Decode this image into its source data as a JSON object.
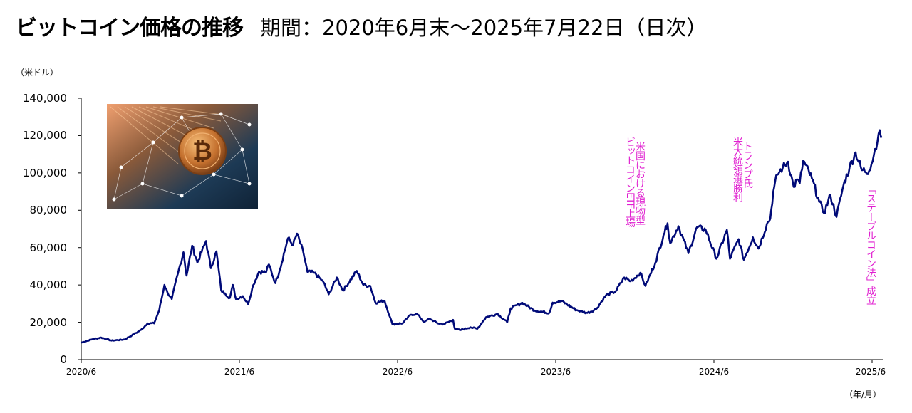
{
  "title": {
    "main": "ビットコイン価格の推移",
    "sub": "期間：2020年6月末～2025年7月22日（日次）"
  },
  "chart_data": {
    "type": "line",
    "yunit": "（米ドル）",
    "xunit": "（年/月）",
    "yticks": [
      "0",
      "20,000",
      "40,000",
      "60,000",
      "80,000",
      "100,000",
      "120,000",
      "140,000"
    ],
    "ylim": [
      0,
      140000
    ],
    "xticks": [
      "2020/6",
      "2021/6",
      "2022/6",
      "2023/6",
      "2024/6",
      "2025/6"
    ],
    "line_color": "#000a78",
    "annotation_color": "#e020d0",
    "series": [
      {
        "values": [
          [
            "2020-06-30",
            9100
          ],
          [
            "2020-07-27",
            11000
          ],
          [
            "2020-08-15",
            11800
          ],
          [
            "2020-09-08",
            10200
          ],
          [
            "2020-10-08",
            10800
          ],
          [
            "2020-10-25",
            13000
          ],
          [
            "2020-11-15",
            15900
          ],
          [
            "2020-11-30",
            19400
          ],
          [
            "2020-12-15",
            19400
          ],
          [
            "2020-12-27",
            26500
          ],
          [
            "2021-01-08",
            40000
          ],
          [
            "2021-01-15",
            36000
          ],
          [
            "2021-01-25",
            32500
          ],
          [
            "2021-02-08",
            46000
          ],
          [
            "2021-02-21",
            57500
          ],
          [
            "2021-02-28",
            45000
          ],
          [
            "2021-03-13",
            61000
          ],
          [
            "2021-03-25",
            52000
          ],
          [
            "2021-04-14",
            63500
          ],
          [
            "2021-04-25",
            49000
          ],
          [
            "2021-05-08",
            58000
          ],
          [
            "2021-05-19",
            37000
          ],
          [
            "2021-05-28",
            35500
          ],
          [
            "2021-06-08",
            33000
          ],
          [
            "2021-06-15",
            40000
          ],
          [
            "2021-06-22",
            32500
          ],
          [
            "2021-07-08",
            34000
          ],
          [
            "2021-07-20",
            29800
          ],
          [
            "2021-08-01",
            40000
          ],
          [
            "2021-08-14",
            47000
          ],
          [
            "2021-08-31",
            47000
          ],
          [
            "2021-09-06",
            51000
          ],
          [
            "2021-09-21",
            41000
          ],
          [
            "2021-10-01",
            48000
          ],
          [
            "2021-10-20",
            65000
          ],
          [
            "2021-11-01",
            61500
          ],
          [
            "2021-11-10",
            67500
          ],
          [
            "2021-11-25",
            57000
          ],
          [
            "2021-12-04",
            47000
          ],
          [
            "2021-12-20",
            46500
          ],
          [
            "2022-01-10",
            41500
          ],
          [
            "2022-01-22",
            35000
          ],
          [
            "2022-02-10",
            44000
          ],
          [
            "2022-02-24",
            37000
          ],
          [
            "2022-03-28",
            47500
          ],
          [
            "2022-04-12",
            40000
          ],
          [
            "2022-04-28",
            39500
          ],
          [
            "2022-05-10",
            30500
          ],
          [
            "2022-05-31",
            31500
          ],
          [
            "2022-06-13",
            22500
          ],
          [
            "2022-06-18",
            19000
          ],
          [
            "2022-07-12",
            19500
          ],
          [
            "2022-07-30",
            24000
          ],
          [
            "2022-08-14",
            24500
          ],
          [
            "2022-08-31",
            20000
          ],
          [
            "2022-09-12",
            22000
          ],
          [
            "2022-09-30",
            19500
          ],
          [
            "2022-10-15",
            19000
          ],
          [
            "2022-11-05",
            21300
          ],
          [
            "2022-11-09",
            16500
          ],
          [
            "2022-11-21",
            15800
          ],
          [
            "2022-12-15",
            17300
          ],
          [
            "2022-12-31",
            16500
          ],
          [
            "2023-01-20",
            22700
          ],
          [
            "2023-02-16",
            24500
          ],
          [
            "2023-03-10",
            20000
          ],
          [
            "2023-03-18",
            27500
          ],
          [
            "2023-04-14",
            30400
          ],
          [
            "2023-05-12",
            26300
          ],
          [
            "2023-06-15",
            25000
          ],
          [
            "2023-06-23",
            30500
          ],
          [
            "2023-07-14",
            31300
          ],
          [
            "2023-08-17",
            26500
          ],
          [
            "2023-09-11",
            25000
          ],
          [
            "2023-10-01",
            27000
          ],
          [
            "2023-10-24",
            34500
          ],
          [
            "2023-11-15",
            36500
          ],
          [
            "2023-12-05",
            44000
          ],
          [
            "2023-12-20",
            42000
          ],
          [
            "2024-01-11",
            46500
          ],
          [
            "2024-01-23",
            39500
          ],
          [
            "2024-02-15",
            52000
          ],
          [
            "2024-03-05",
            67000
          ],
          [
            "2024-03-14",
            73000
          ],
          [
            "2024-03-20",
            62500
          ],
          [
            "2024-04-08",
            71500
          ],
          [
            "2024-05-01",
            57000
          ],
          [
            "2024-05-21",
            71000
          ],
          [
            "2024-06-10",
            69500
          ],
          [
            "2024-07-05",
            54000
          ],
          [
            "2024-07-29",
            69500
          ],
          [
            "2024-08-05",
            54000
          ],
          [
            "2024-08-25",
            64500
          ],
          [
            "2024-09-06",
            53500
          ],
          [
            "2024-09-27",
            65500
          ],
          [
            "2024-10-10",
            59500
          ],
          [
            "2024-10-29",
            72500
          ],
          [
            "2024-11-06",
            75500
          ],
          [
            "2024-11-13",
            90000
          ],
          [
            "2024-11-22",
            99000
          ],
          [
            "2024-12-05",
            103000
          ],
          [
            "2024-12-17",
            106000
          ],
          [
            "2024-12-30",
            92500
          ],
          [
            "2025-01-07",
            96500
          ],
          [
            "2025-01-13",
            94500
          ],
          [
            "2025-01-21",
            106500
          ],
          [
            "2025-02-10",
            97000
          ],
          [
            "2025-02-27",
            84500
          ],
          [
            "2025-03-10",
            78500
          ],
          [
            "2025-03-25",
            88000
          ],
          [
            "2025-04-08",
            76500
          ],
          [
            "2025-04-24",
            93500
          ],
          [
            "2025-05-08",
            103000
          ],
          [
            "2025-05-22",
            111000
          ],
          [
            "2025-06-05",
            101500
          ],
          [
            "2025-06-22",
            101000
          ],
          [
            "2025-07-03",
            109500
          ],
          [
            "2025-07-14",
            121000
          ],
          [
            "2025-07-22",
            119500
          ]
        ]
      }
    ],
    "annotations": [
      {
        "date": "2024-01-11",
        "lines": [
          "米国における現物型",
          "ビットコインETF上場"
        ]
      },
      {
        "date": "2024-11-05",
        "lines": [
          "トランプ氏",
          "米大統領選勝利"
        ]
      },
      {
        "date": "2025-07-18",
        "lines": [
          "「ステーブルコイン法」成立"
        ]
      }
    ]
  }
}
